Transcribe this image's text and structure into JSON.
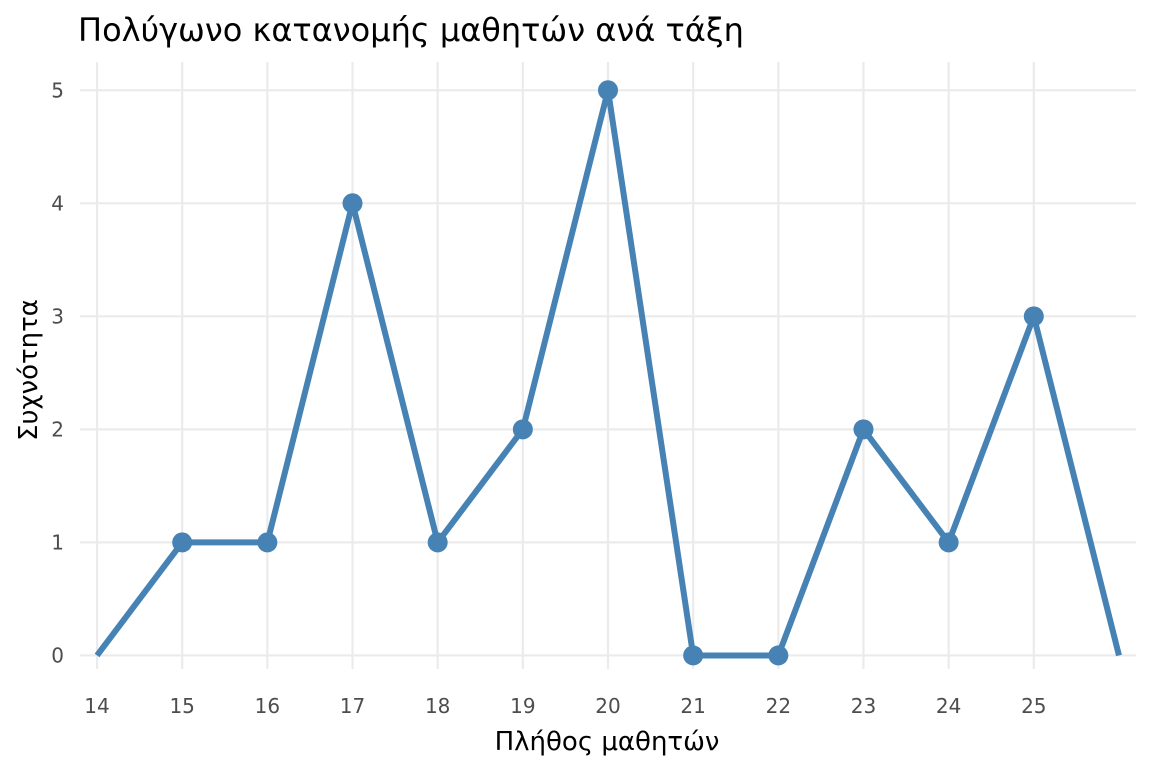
{
  "chart_data": {
    "type": "line",
    "title": "Πολύγωνο κατανομής μαθητών ανά τάξη",
    "xlabel": "Πλήθος μαθητών",
    "ylabel": "Συχνότητα",
    "x_ticks": [
      14,
      15,
      16,
      17,
      18,
      19,
      20,
      21,
      22,
      23,
      24,
      25
    ],
    "y_ticks": [
      0,
      1,
      2,
      3,
      4,
      5
    ],
    "xlim": [
      13.8,
      26.2
    ],
    "ylim": [
      -0.12,
      5.25
    ],
    "grid": true,
    "legend": "none",
    "series": [
      {
        "color": "#4682B4",
        "line_points": [
          {
            "x": 14,
            "y": 0
          },
          {
            "x": 15,
            "y": 1
          },
          {
            "x": 16,
            "y": 1
          },
          {
            "x": 17,
            "y": 4
          },
          {
            "x": 18,
            "y": 1
          },
          {
            "x": 19,
            "y": 2
          },
          {
            "x": 20,
            "y": 5
          },
          {
            "x": 21,
            "y": 0
          },
          {
            "x": 22,
            "y": 0
          },
          {
            "x": 23,
            "y": 2
          },
          {
            "x": 24,
            "y": 1
          },
          {
            "x": 25,
            "y": 3
          },
          {
            "x": 26,
            "y": 0
          }
        ],
        "marker_points": [
          {
            "x": 15,
            "y": 1
          },
          {
            "x": 16,
            "y": 1
          },
          {
            "x": 17,
            "y": 4
          },
          {
            "x": 18,
            "y": 1
          },
          {
            "x": 19,
            "y": 2
          },
          {
            "x": 20,
            "y": 5
          },
          {
            "x": 21,
            "y": 0
          },
          {
            "x": 22,
            "y": 0
          },
          {
            "x": 23,
            "y": 2
          },
          {
            "x": 24,
            "y": 1
          },
          {
            "x": 25,
            "y": 3
          }
        ]
      }
    ]
  }
}
